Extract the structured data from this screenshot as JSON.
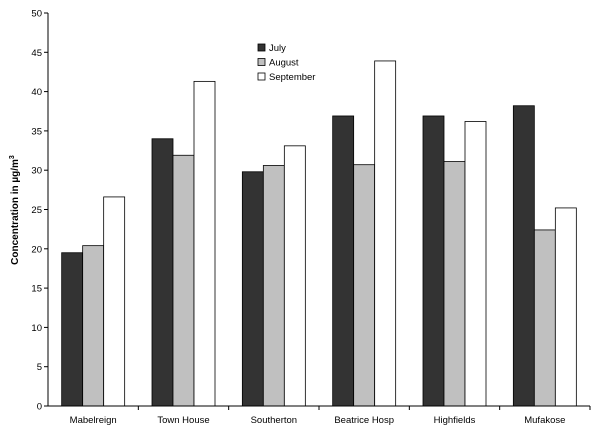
{
  "chart_data": {
    "type": "bar",
    "title": "",
    "xlabel": "",
    "ylabel_main": "Concentration in µg/m",
    "ylabel_sup": "3",
    "ylim": [
      0,
      50
    ],
    "ytick_step": 5,
    "grid": false,
    "legend_position": "top-center",
    "categories": [
      "Mabelreign",
      "Town House",
      "Southerton",
      "Beatrice Hosp",
      "Highfields",
      "Mufakose"
    ],
    "series": [
      {
        "name": "July",
        "color": "#333333",
        "values": [
          19.5,
          34.0,
          29.8,
          36.9,
          36.9,
          38.2
        ]
      },
      {
        "name": "August",
        "color": "#c0c0c0",
        "values": [
          20.4,
          31.9,
          30.6,
          30.7,
          31.1,
          22.4
        ]
      },
      {
        "name": "September",
        "color": "#ffffff",
        "values": [
          26.6,
          41.3,
          33.1,
          43.9,
          36.2,
          25.2
        ]
      }
    ]
  }
}
